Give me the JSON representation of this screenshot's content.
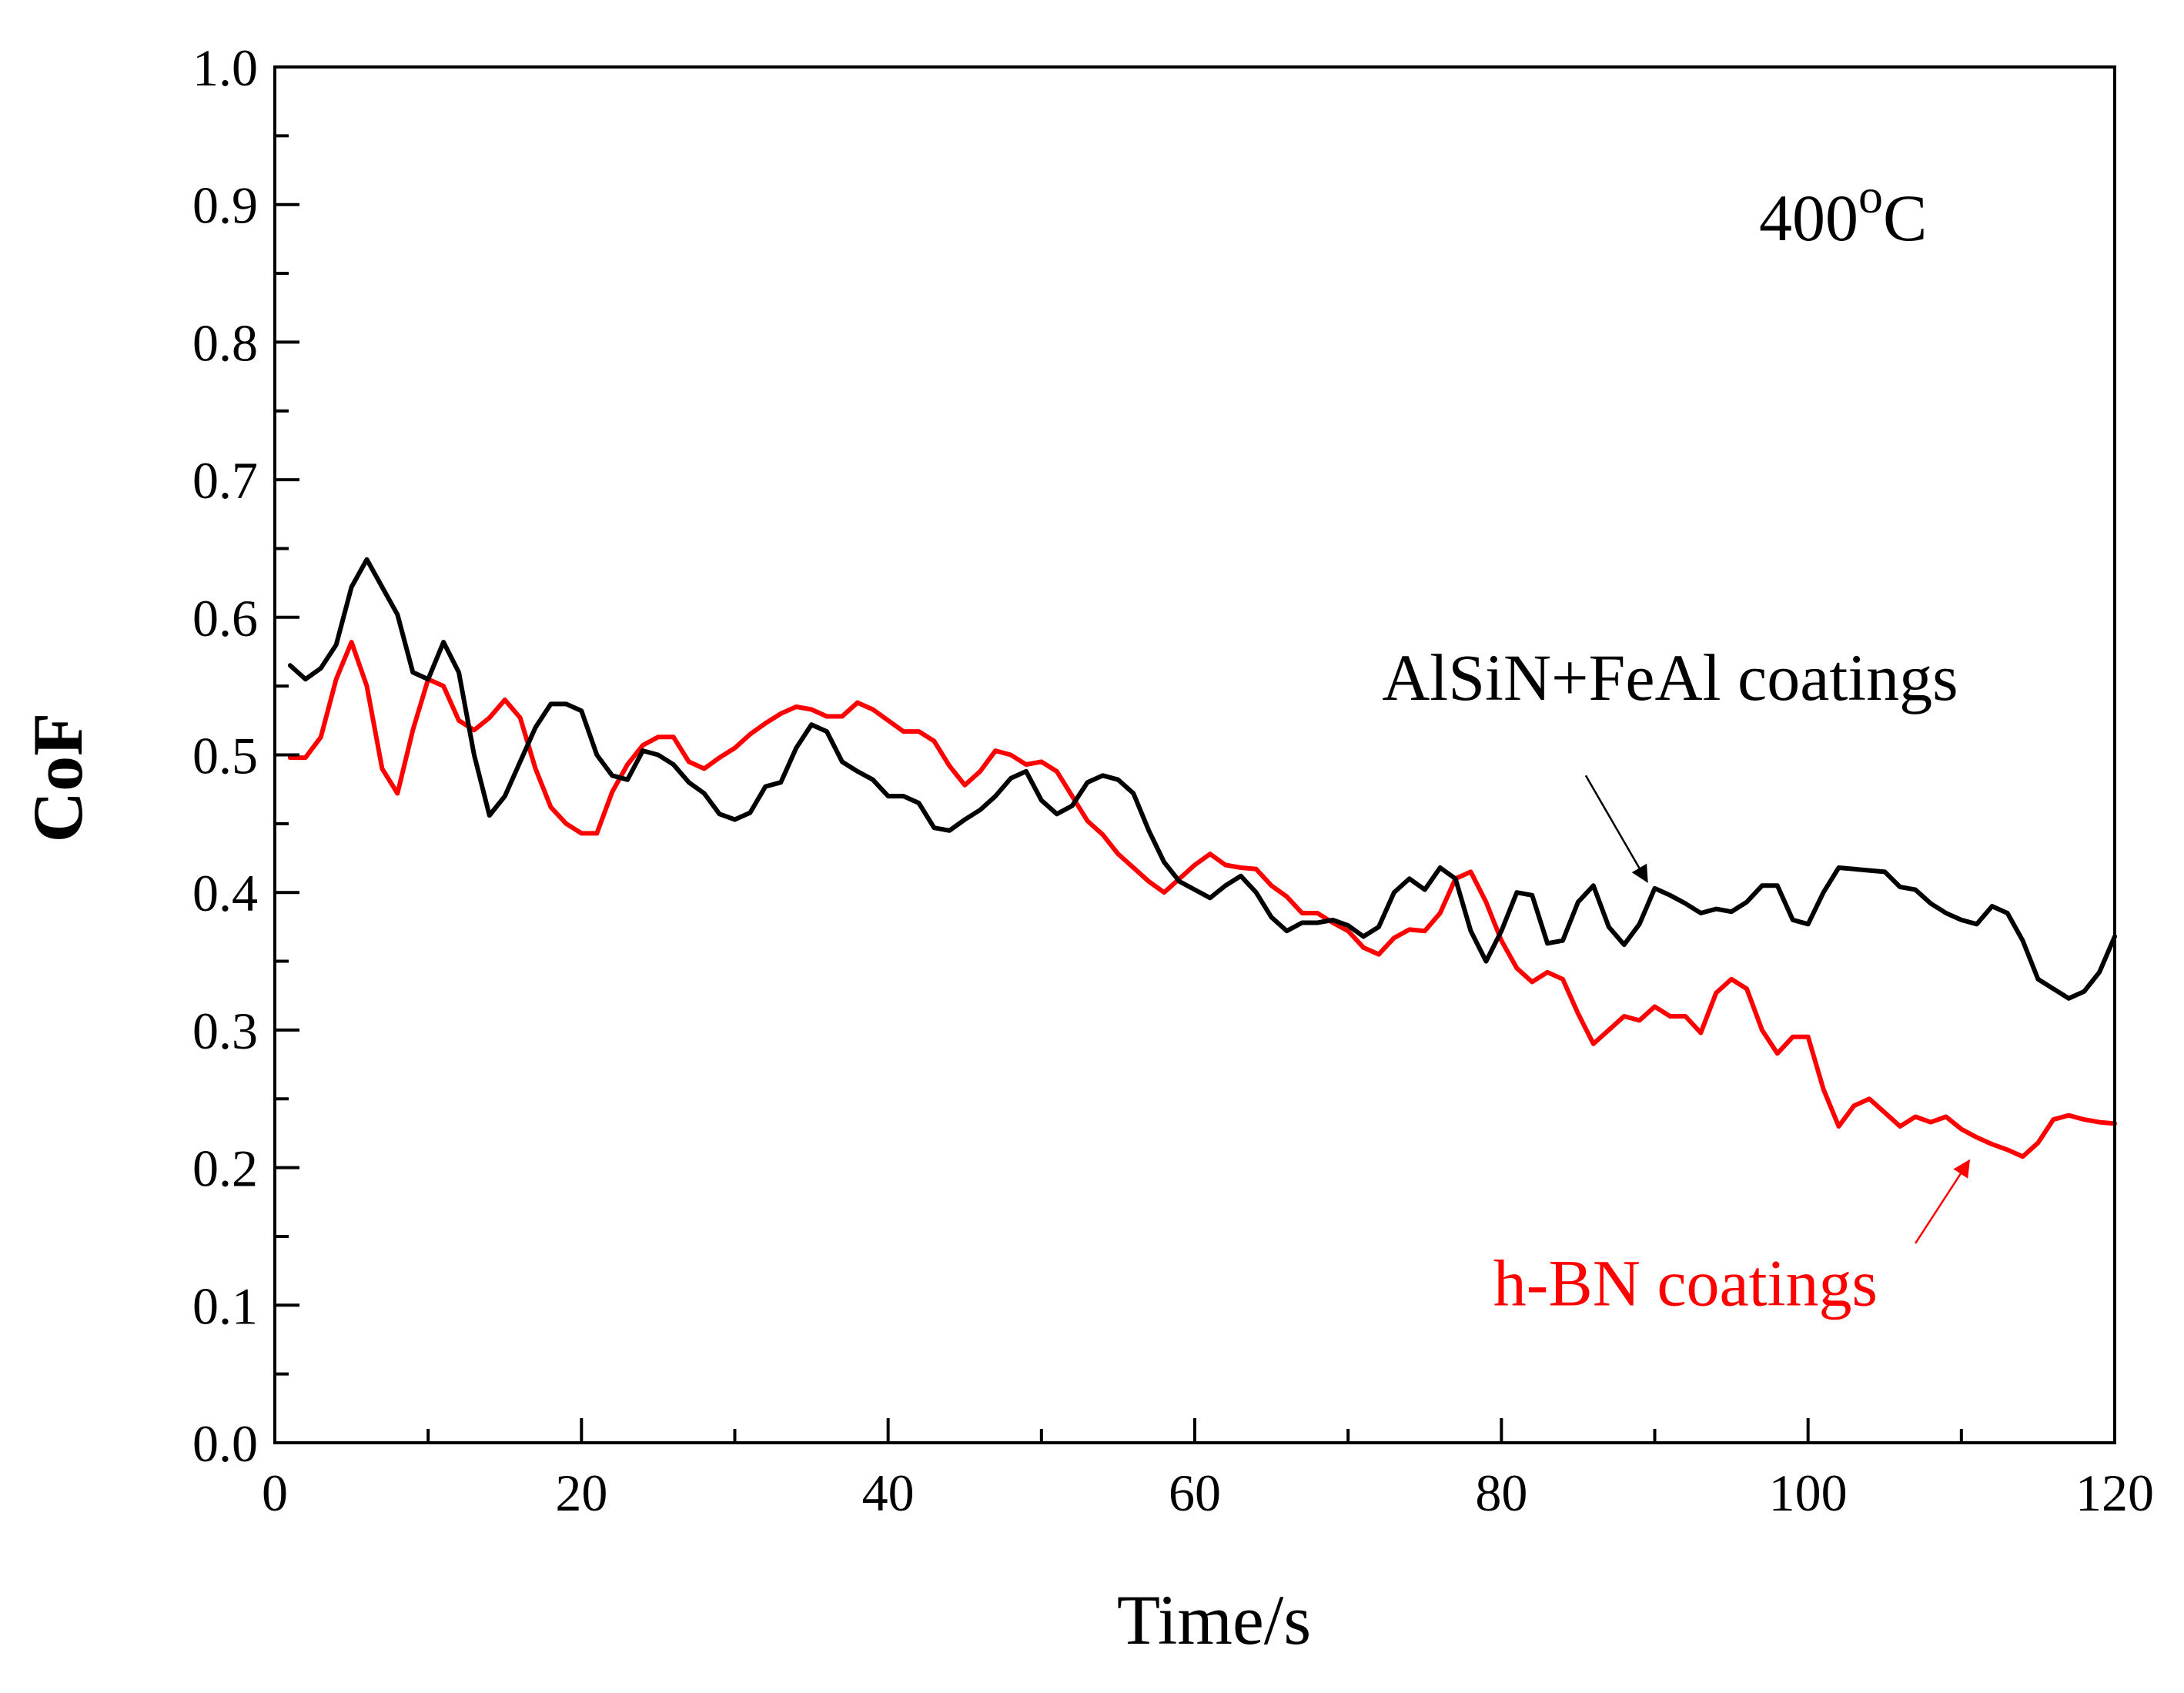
{
  "chart_data": {
    "type": "line",
    "title": "",
    "xlabel": "Time/s",
    "ylabel": "CoF",
    "xlim": [
      0,
      120
    ],
    "ylim": [
      0.0,
      1.0
    ],
    "xticks": [
      0,
      20,
      40,
      60,
      80,
      100,
      120
    ],
    "xtick_labels": [
      "0",
      "20",
      "40",
      "60",
      "80",
      "100",
      "120"
    ],
    "yticks": [
      0.0,
      0.1,
      0.2,
      0.3,
      0.4,
      0.5,
      0.6,
      0.7,
      0.8,
      0.9,
      1.0
    ],
    "ytick_labels": [
      "0.0",
      "0.1",
      "0.2",
      "0.3",
      "0.4",
      "0.5",
      "0.6",
      "0.7",
      "0.8",
      "0.9",
      "1.0"
    ],
    "grid": false,
    "temperature_label": {
      "main": "400",
      "sup": "o",
      "tail": "C"
    },
    "series": [
      {
        "name": "AlSiN+FeAl coatings",
        "color": "#000000",
        "x": [
          1,
          2,
          3,
          4,
          5,
          6,
          7,
          8,
          9,
          10,
          11,
          12,
          13,
          14,
          15,
          16,
          17,
          18,
          19,
          20,
          21,
          22,
          23,
          24,
          25,
          26,
          27,
          28,
          29,
          30,
          31,
          32,
          33,
          34,
          35,
          36,
          37,
          38,
          39,
          40,
          41,
          42,
          43,
          44,
          45,
          46,
          47,
          48,
          49,
          50,
          51,
          52,
          53,
          54,
          55,
          56,
          57,
          58,
          59,
          60,
          61,
          62,
          63,
          64,
          65,
          66,
          67,
          68,
          69,
          70,
          71,
          72,
          73,
          74,
          75,
          76,
          77,
          78,
          79,
          80,
          81,
          82,
          83,
          84,
          85,
          86,
          87,
          88,
          89,
          90,
          91,
          92,
          93,
          94,
          95,
          96,
          97,
          98,
          99,
          100,
          101,
          102,
          103,
          104,
          105,
          106,
          107,
          108,
          109,
          110,
          111,
          112,
          113,
          114,
          115,
          116,
          117,
          118,
          119,
          120
        ],
        "values": [
          0.565,
          0.555,
          0.563,
          0.58,
          0.622,
          0.642,
          0.622,
          0.602,
          0.56,
          0.555,
          0.582,
          0.56,
          0.5,
          0.456,
          0.47,
          0.495,
          0.52,
          0.537,
          0.537,
          0.532,
          0.5,
          0.485,
          0.482,
          0.503,
          0.5,
          0.493,
          0.48,
          0.472,
          0.457,
          0.453,
          0.458,
          0.477,
          0.48,
          0.505,
          0.522,
          0.517,
          0.495,
          0.488,
          0.482,
          0.47,
          0.47,
          0.465,
          0.447,
          0.445,
          0.453,
          0.46,
          0.47,
          0.483,
          0.488,
          0.467,
          0.457,
          0.463,
          0.48,
          0.485,
          0.482,
          0.472,
          0.445,
          0.422,
          0.408,
          0.402,
          0.396,
          0.405,
          0.412,
          0.4,
          0.382,
          0.372,
          0.378,
          0.378,
          0.38,
          0.376,
          0.368,
          0.375,
          0.4,
          0.41,
          0.402,
          0.418,
          0.41,
          0.372,
          0.35,
          0.372,
          0.4,
          0.398,
          0.363,
          0.365,
          0.393,
          0.405,
          0.375,
          0.362,
          0.377,
          0.403,
          0.398,
          0.392,
          0.385,
          0.388,
          0.386,
          0.393,
          0.405,
          0.405,
          0.38,
          0.377,
          0.4,
          0.418,
          0.417,
          0.416,
          0.415,
          0.404,
          0.402,
          0.392,
          0.385,
          0.38,
          0.377,
          0.39,
          0.385,
          0.365,
          0.337,
          0.33,
          0.323,
          0.328,
          0.342,
          0.368
        ]
      },
      {
        "name": "h-BN coatings",
        "color": "#ff0000",
        "x": [
          1,
          2,
          3,
          4,
          5,
          6,
          7,
          8,
          9,
          10,
          11,
          12,
          13,
          14,
          15,
          16,
          17,
          18,
          19,
          20,
          21,
          22,
          23,
          24,
          25,
          26,
          27,
          28,
          29,
          30,
          31,
          32,
          33,
          34,
          35,
          36,
          37,
          38,
          39,
          40,
          41,
          42,
          43,
          44,
          45,
          46,
          47,
          48,
          49,
          50,
          51,
          52,
          53,
          54,
          55,
          56,
          57,
          58,
          59,
          60,
          61,
          62,
          63,
          64,
          65,
          66,
          67,
          68,
          69,
          70,
          71,
          72,
          73,
          74,
          75,
          76,
          77,
          78,
          79,
          80,
          81,
          82,
          83,
          84,
          85,
          86,
          87,
          88,
          89,
          90,
          91,
          92,
          93,
          94,
          95,
          96,
          97,
          98,
          99,
          100,
          101,
          102,
          103,
          104,
          105,
          106,
          107,
          108,
          109,
          110,
          111,
          112,
          113,
          114,
          115,
          116,
          117,
          118,
          119,
          120
        ],
        "values": [
          0.498,
          0.498,
          0.513,
          0.555,
          0.582,
          0.55,
          0.49,
          0.472,
          0.518,
          0.555,
          0.55,
          0.525,
          0.518,
          0.527,
          0.54,
          0.527,
          0.49,
          0.462,
          0.45,
          0.443,
          0.443,
          0.473,
          0.493,
          0.507,
          0.513,
          0.513,
          0.495,
          0.49,
          0.498,
          0.505,
          0.515,
          0.523,
          0.53,
          0.535,
          0.533,
          0.528,
          0.528,
          0.538,
          0.533,
          0.525,
          0.517,
          0.517,
          0.51,
          0.492,
          0.478,
          0.488,
          0.503,
          0.5,
          0.493,
          0.495,
          0.488,
          0.47,
          0.452,
          0.442,
          0.428,
          0.418,
          0.408,
          0.4,
          0.41,
          0.42,
          0.428,
          0.42,
          0.418,
          0.417,
          0.405,
          0.397,
          0.385,
          0.385,
          0.378,
          0.372,
          0.36,
          0.355,
          0.367,
          0.373,
          0.372,
          0.385,
          0.41,
          0.415,
          0.393,
          0.365,
          0.345,
          0.335,
          0.342,
          0.337,
          0.312,
          0.29,
          0.3,
          0.31,
          0.307,
          0.317,
          0.31,
          0.31,
          0.298,
          0.327,
          0.337,
          0.33,
          0.3,
          0.283,
          0.295,
          0.295,
          0.257,
          0.23,
          0.245,
          0.25,
          0.24,
          0.23,
          0.237,
          0.233,
          0.237,
          0.228,
          0.222,
          0.217,
          0.213,
          0.208,
          0.218,
          0.235,
          0.238,
          0.235,
          0.233,
          0.232
        ]
      }
    ],
    "annotations": [
      {
        "text": "AlSiN+FeAl coatings",
        "series": "AlSiN+FeAl coatings",
        "color": "#000000",
        "text_anchor_data": [
          91,
          0.54
        ],
        "arrow_from": [
          85.5,
          0.485
        ],
        "arrow_to": [
          89.5,
          0.408
        ]
      },
      {
        "text": "h-BN coatings",
        "series": "h-BN coatings",
        "color": "#ff0000",
        "text_anchor_data": [
          92,
          0.1
        ],
        "arrow_from": [
          107,
          0.145
        ],
        "arrow_to": [
          110.5,
          0.205
        ]
      }
    ]
  }
}
